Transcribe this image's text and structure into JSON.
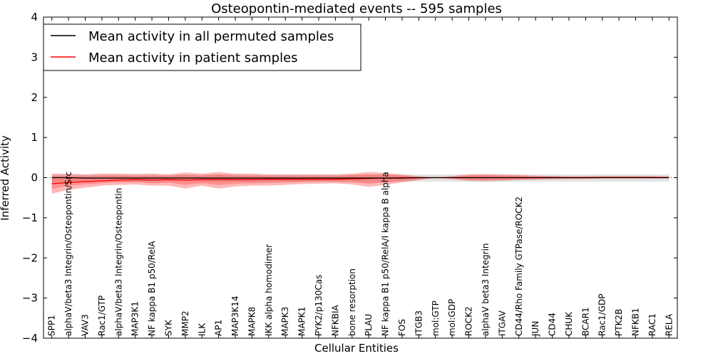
{
  "chart_data": {
    "type": "line",
    "title": "Osteopontin-mediated events -- 595 samples",
    "xlabel": "Cellular Entities",
    "ylabel": "Inferred Activity",
    "ylim": [
      -4,
      4
    ],
    "yticks": [
      -4,
      -3,
      -2,
      -1,
      0,
      1,
      2,
      3,
      4
    ],
    "ytick_labels": [
      "−4",
      "−3",
      "−2",
      "−1",
      "0",
      "1",
      "2",
      "3",
      "4"
    ],
    "grid": false,
    "legend_position": "top-left",
    "categories": [
      "SPP1",
      "alphaV/beta3 Integrin/Osteopontin/Src",
      "VAV3",
      "Rac1/GTP",
      "alphaV/beta3 Integrin/Osteopontin",
      "MAP3K1",
      "NF kappa B1 p50/RelA",
      "SYK",
      "MMP2",
      "ILK",
      "AP1",
      "MAP3K14",
      "MAPK8",
      "IKK alpha homodimer",
      "MAPK3",
      "MAPK1",
      "PYK2/p130Cas",
      "NFKBIA",
      "bone resorption",
      "PLAU",
      "NF kappa B1 p50/RelA/I kappa B alpha",
      "FOS",
      "ITGB3",
      "mol:GTP",
      "mol:GDP",
      "ROCK2",
      "alphaV beta3 Integrin",
      "ITGAV",
      "CD44/Rho Family GTPase/ROCK2",
      "JUN",
      "CD44",
      "CHUK",
      "BCAR1",
      "Rac1/GDP",
      "PTK2B",
      "NFKB1",
      "RAC1",
      "RELA"
    ],
    "series": [
      {
        "name": "Mean activity in all permuted samples",
        "color": "#000000",
        "style": "solid",
        "values": [
          0.0,
          0.0,
          -0.01,
          -0.01,
          -0.01,
          -0.01,
          -0.01,
          -0.01,
          -0.01,
          -0.01,
          -0.01,
          -0.01,
          -0.01,
          -0.01,
          -0.01,
          -0.01,
          -0.01,
          -0.01,
          -0.01,
          -0.01,
          -0.01,
          -0.01,
          0.0,
          0.0,
          0.0,
          0.0,
          0.0,
          0.0,
          0.0,
          0.0,
          0.0,
          0.0,
          0.0,
          0.0,
          0.0,
          0.0,
          0.0,
          0.0
        ],
        "band_low": [
          -0.1,
          -0.1,
          -0.1,
          -0.1,
          -0.1,
          -0.1,
          -0.1,
          -0.1,
          -0.1,
          -0.1,
          -0.1,
          -0.1,
          -0.1,
          -0.1,
          -0.1,
          -0.1,
          -0.1,
          -0.1,
          -0.1,
          -0.1,
          -0.1,
          -0.1,
          -0.1,
          -0.1,
          -0.1,
          -0.1,
          -0.1,
          -0.1,
          -0.1,
          -0.1,
          -0.1,
          -0.1,
          -0.1,
          -0.1,
          -0.1,
          -0.1,
          -0.1,
          -0.1
        ],
        "band_high": [
          0.08,
          0.08,
          0.08,
          0.08,
          0.08,
          0.08,
          0.08,
          0.08,
          0.08,
          0.08,
          0.08,
          0.08,
          0.08,
          0.08,
          0.08,
          0.08,
          0.08,
          0.08,
          0.08,
          0.08,
          0.08,
          0.08,
          0.08,
          0.08,
          0.08,
          0.08,
          0.08,
          0.08,
          0.08,
          0.08,
          0.08,
          0.08,
          0.08,
          0.08,
          0.08,
          0.08,
          0.08,
          0.08
        ],
        "band_color": "#cccccc"
      },
      {
        "name": "Mean activity in patient samples",
        "color": "#ff0000",
        "style": "solid",
        "values": [
          -0.15,
          -0.12,
          -0.1,
          -0.08,
          -0.06,
          -0.05,
          -0.06,
          -0.05,
          -0.06,
          -0.05,
          -0.05,
          -0.05,
          -0.05,
          -0.04,
          -0.04,
          -0.04,
          -0.04,
          -0.04,
          -0.03,
          -0.02,
          -0.01,
          0.0,
          0.0,
          0.0,
          0.0,
          0.0,
          0.0,
          0.0,
          0.0,
          0.0,
          0.0,
          0.0,
          0.0,
          0.0,
          0.0,
          0.0,
          0.0,
          0.0
        ],
        "band_low": [
          -0.4,
          -0.3,
          -0.25,
          -0.2,
          -0.18,
          -0.17,
          -0.2,
          -0.2,
          -0.27,
          -0.2,
          -0.27,
          -0.22,
          -0.2,
          -0.2,
          -0.18,
          -0.16,
          -0.15,
          -0.14,
          -0.17,
          -0.23,
          -0.18,
          -0.12,
          -0.06,
          0.0,
          -0.04,
          -0.08,
          -0.09,
          -0.08,
          -0.06,
          -0.05,
          -0.04,
          -0.03,
          -0.03,
          -0.02,
          -0.02,
          -0.02,
          -0.02,
          -0.02
        ],
        "band_high": [
          0.1,
          0.1,
          0.08,
          0.1,
          0.1,
          0.09,
          0.1,
          0.08,
          0.13,
          0.1,
          0.14,
          0.1,
          0.1,
          0.08,
          0.08,
          0.08,
          0.08,
          0.08,
          0.1,
          0.14,
          0.12,
          0.08,
          0.03,
          0.0,
          0.04,
          0.08,
          0.09,
          0.08,
          0.07,
          0.05,
          0.04,
          0.03,
          0.03,
          0.04,
          0.04,
          0.04,
          0.04,
          0.03
        ],
        "band_color": "#ff3333",
        "band_inner_low": [
          -0.28,
          -0.2,
          -0.17,
          -0.14,
          -0.12,
          -0.11,
          -0.14,
          -0.13,
          -0.18,
          -0.14,
          -0.18,
          -0.15,
          -0.14,
          -0.13,
          -0.12,
          -0.11,
          -0.1,
          -0.1,
          -0.11,
          -0.15,
          -0.12,
          -0.08,
          -0.04,
          0.0,
          -0.02,
          -0.05,
          -0.06,
          -0.05,
          -0.04,
          -0.03,
          -0.02,
          -0.02,
          -0.02,
          -0.01,
          -0.01,
          -0.01,
          -0.01,
          -0.01
        ],
        "band_inner_high": [
          0.04,
          0.04,
          0.03,
          0.05,
          0.05,
          0.04,
          0.05,
          0.04,
          0.07,
          0.05,
          0.08,
          0.05,
          0.05,
          0.04,
          0.04,
          0.04,
          0.04,
          0.04,
          0.06,
          0.08,
          0.07,
          0.05,
          0.02,
          0.0,
          0.02,
          0.05,
          0.06,
          0.05,
          0.04,
          0.03,
          0.03,
          0.02,
          0.02,
          0.03,
          0.03,
          0.03,
          0.03,
          0.02
        ]
      }
    ],
    "reference_line": {
      "value": 0,
      "style": "dotted",
      "color": "#555555"
    }
  }
}
